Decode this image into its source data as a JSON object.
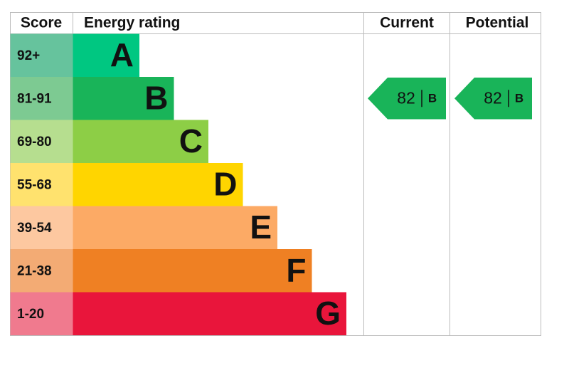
{
  "header": {
    "score": "Score",
    "energy_rating": "Energy rating",
    "current": "Current",
    "potential": "Potential"
  },
  "bands": [
    {
      "score": "92+",
      "rating": "A",
      "color": "#00c781",
      "score_color": "#66c39d"
    },
    {
      "score": "81-91",
      "rating": "B",
      "color": "#19b459",
      "score_color": "#7dca92"
    },
    {
      "score": "69-80",
      "rating": "C",
      "color": "#8dce46",
      "score_color": "#b6de8f"
    },
    {
      "score": "55-68",
      "rating": "D",
      "color": "#ffd500",
      "score_color": "#ffe26e"
    },
    {
      "score": "39-54",
      "rating": "E",
      "color": "#fcaa65",
      "score_color": "#fdc8a0"
    },
    {
      "score": "21-38",
      "rating": "F",
      "color": "#ef8023",
      "score_color": "#f3ab74"
    },
    {
      "score": "1-20",
      "rating": "G",
      "color": "#e9153b",
      "score_color": "#f07a8e"
    }
  ],
  "current": {
    "score": 82,
    "rating": "B"
  },
  "potential": {
    "score": 82,
    "rating": "B"
  }
}
